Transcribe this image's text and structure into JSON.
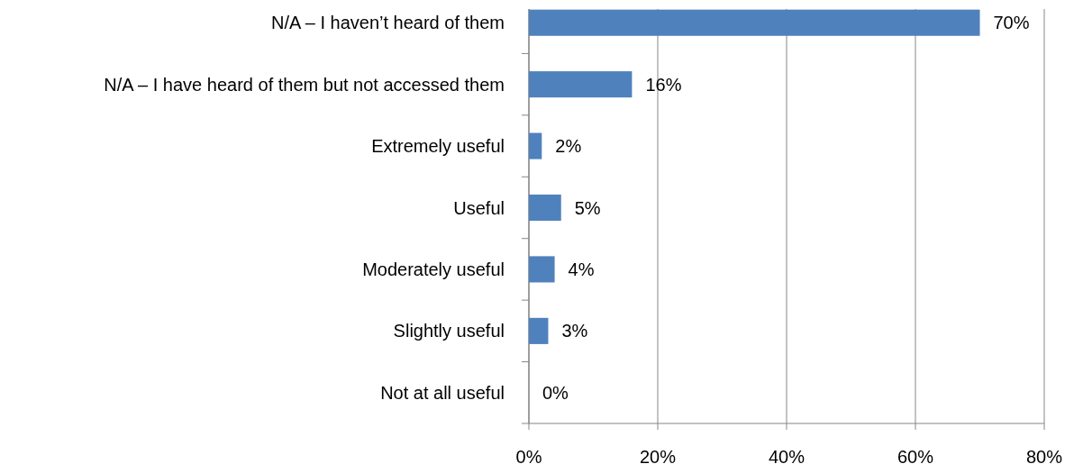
{
  "chart_data": {
    "type": "bar",
    "orientation": "horizontal",
    "categories": [
      "N/A – I haven’t heard of them",
      "N/A – I have heard of them but not accessed them",
      "Extremely useful",
      "Useful",
      "Moderately useful",
      "Slightly useful",
      "Not at all useful"
    ],
    "values": [
      70,
      16,
      2,
      5,
      4,
      3,
      0
    ],
    "color": "#4f81bd",
    "xlim": [
      0,
      80
    ],
    "xticks": [
      {
        "value": 0,
        "label": "0%"
      },
      {
        "value": 20,
        "label": "20%"
      },
      {
        "value": 40,
        "label": "40%"
      },
      {
        "value": 60,
        "label": "60%"
      },
      {
        "value": 80,
        "label": "80%"
      }
    ],
    "grid": "x",
    "value_labels": [
      "70%",
      "16%",
      "2%",
      "5%",
      "4%",
      "3%",
      "0%"
    ]
  }
}
